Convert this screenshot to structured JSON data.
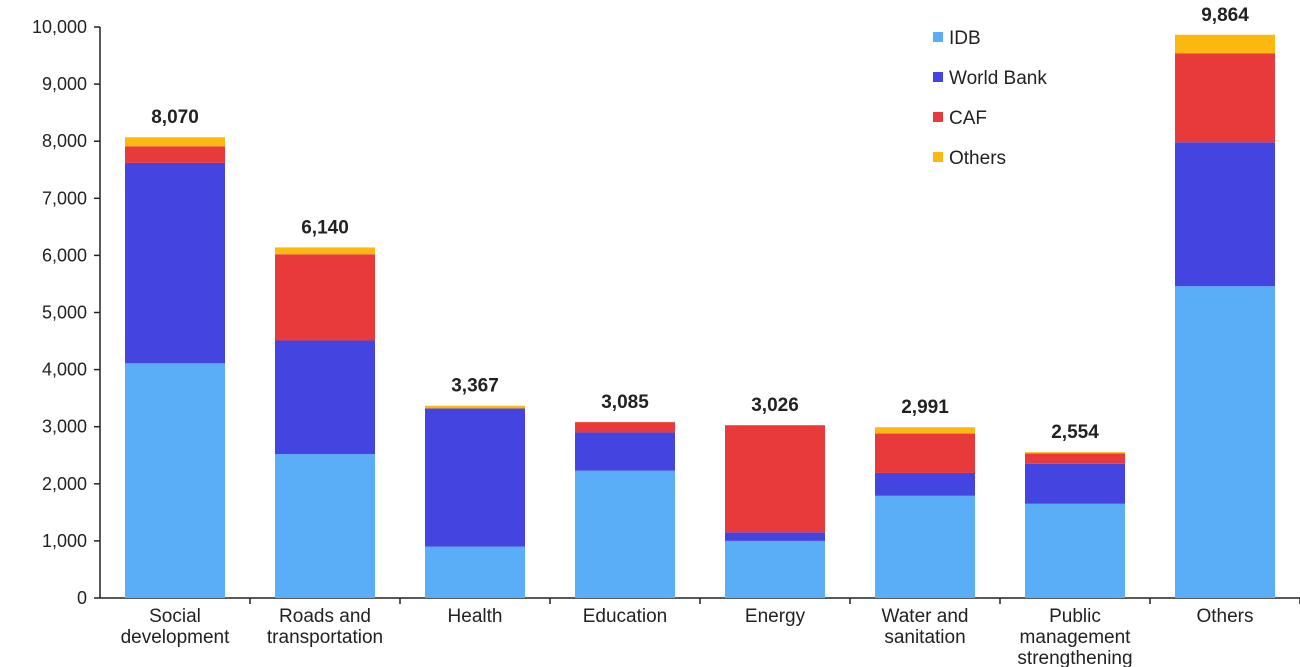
{
  "chart_data": {
    "type": "bar",
    "stacked": true,
    "title": "",
    "xlabel": "",
    "ylabel": "",
    "ylim": [
      0,
      10000
    ],
    "yticks": [
      0,
      1000,
      2000,
      3000,
      4000,
      5000,
      6000,
      7000,
      8000,
      9000,
      10000
    ],
    "ytick_labels": [
      "0",
      "1,000",
      "2,000",
      "3,000",
      "4,000",
      "5,000",
      "6,000",
      "7,000",
      "8,000",
      "9,000",
      "10,000"
    ],
    "grid": false,
    "legend_position": "top-right",
    "categories": [
      [
        "Social",
        "development"
      ],
      [
        "Roads and",
        "transportation"
      ],
      [
        "Health"
      ],
      [
        "Education"
      ],
      [
        "Energy"
      ],
      [
        "Water and",
        "sanitation"
      ],
      [
        "Public",
        "management",
        "strengthening"
      ],
      [
        "Others"
      ]
    ],
    "series": [
      {
        "name": "IDB",
        "color": "#5aaef8",
        "values": [
          4110,
          2520,
          900,
          2230,
          1000,
          1790,
          1650,
          5460
        ]
      },
      {
        "name": "World Bank",
        "color": "#4444e0",
        "values": [
          3510,
          1990,
          2420,
          670,
          150,
          400,
          700,
          2520
        ]
      },
      {
        "name": "CAF",
        "color": "#e83a3a",
        "values": [
          290,
          1510,
          0,
          180,
          1876,
          690,
          180,
          1560
        ]
      },
      {
        "name": "Others",
        "color": "#fbb90f",
        "values": [
          160,
          120,
          47,
          5,
          0,
          111,
          24,
          324
        ]
      }
    ],
    "totals": [
      "8,070",
      "6,140",
      "3,367",
      "3,085",
      "3,026",
      "2,991",
      "2,554",
      "9,864"
    ]
  }
}
